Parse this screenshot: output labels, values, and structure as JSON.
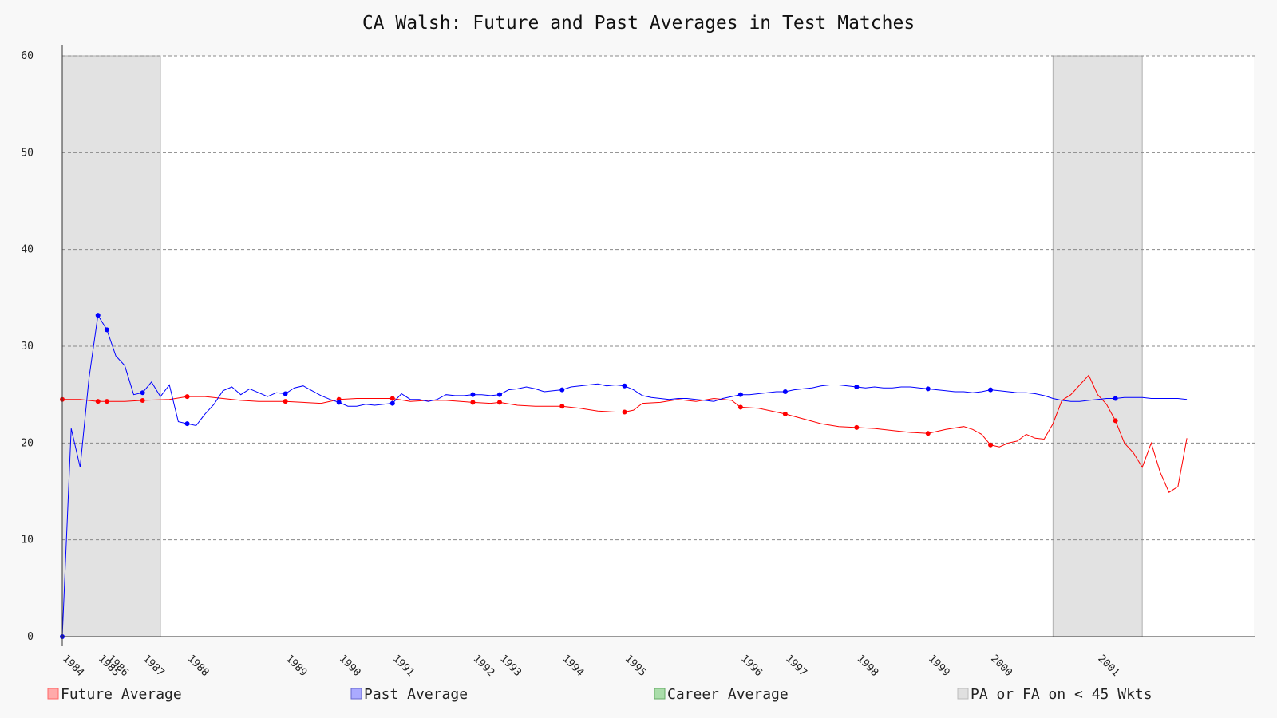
{
  "chart_data": {
    "type": "line",
    "title": "CA Walsh: Future and Past Averages in Test Matches",
    "xlabel": "",
    "ylabel": "",
    "ylim": [
      0,
      60
    ],
    "yticks": [
      0,
      10,
      20,
      30,
      40,
      50,
      60
    ],
    "grid": "horizontal dashed",
    "legend_position": "bottom",
    "x_count": 132,
    "year_labels": [
      {
        "label": "1984",
        "x": 0
      },
      {
        "label": "1985",
        "x": 4
      },
      {
        "label": "1986",
        "x": 5
      },
      {
        "label": "1987",
        "x": 9
      },
      {
        "label": "1988",
        "x": 14
      },
      {
        "label": "1989",
        "x": 25
      },
      {
        "label": "1990",
        "x": 31
      },
      {
        "label": "1991",
        "x": 37
      },
      {
        "label": "1992",
        "x": 46
      },
      {
        "label": "1993",
        "x": 49
      },
      {
        "label": "1994",
        "x": 56
      },
      {
        "label": "1995",
        "x": 63
      },
      {
        "label": "1996",
        "x": 76
      },
      {
        "label": "1997",
        "x": 81
      },
      {
        "label": "1998",
        "x": 89
      },
      {
        "label": "1999",
        "x": 97
      },
      {
        "label": "2000",
        "x": 104
      },
      {
        "label": "2001",
        "x": 116
      }
    ],
    "shaded_regions": [
      {
        "start": 0,
        "end": 11,
        "label": "PA or FA on < 45 Wkts"
      },
      {
        "start": 111,
        "end": 121,
        "label": "PA or FA on < 45 Wkts"
      }
    ],
    "series": [
      {
        "name": "Future Average",
        "color": "#ff0000",
        "points": [
          [
            0,
            24.5
          ],
          [
            2,
            24.5
          ],
          [
            4,
            24.3
          ],
          [
            5,
            24.3
          ],
          [
            7,
            24.3
          ],
          [
            9,
            24.4
          ],
          [
            12,
            24.5
          ],
          [
            14,
            24.8
          ],
          [
            16,
            24.8
          ],
          [
            18,
            24.6
          ],
          [
            20,
            24.4
          ],
          [
            22,
            24.3
          ],
          [
            25,
            24.3
          ],
          [
            27,
            24.2
          ],
          [
            29,
            24.1
          ],
          [
            31,
            24.5
          ],
          [
            33,
            24.6
          ],
          [
            35,
            24.6
          ],
          [
            37,
            24.6
          ],
          [
            39,
            24.3
          ],
          [
            41,
            24.4
          ],
          [
            43,
            24.4
          ],
          [
            46,
            24.2
          ],
          [
            48,
            24.1
          ],
          [
            49,
            24.2
          ],
          [
            51,
            23.9
          ],
          [
            53,
            23.8
          ],
          [
            56,
            23.8
          ],
          [
            58,
            23.6
          ],
          [
            60,
            23.3
          ],
          [
            62,
            23.2
          ],
          [
            63,
            23.2
          ],
          [
            64,
            23.4
          ],
          [
            65,
            24.1
          ],
          [
            67,
            24.2
          ],
          [
            69,
            24.5
          ],
          [
            71,
            24.3
          ],
          [
            73,
            24.6
          ],
          [
            75,
            24.4
          ],
          [
            76,
            23.7
          ],
          [
            78,
            23.6
          ],
          [
            80,
            23.2
          ],
          [
            81,
            23.0
          ],
          [
            83,
            22.5
          ],
          [
            85,
            22.0
          ],
          [
            87,
            21.7
          ],
          [
            89,
            21.6
          ],
          [
            91,
            21.5
          ],
          [
            93,
            21.3
          ],
          [
            95,
            21.1
          ],
          [
            97,
            21.0
          ],
          [
            99,
            21.4
          ],
          [
            101,
            21.7
          ],
          [
            102,
            21.4
          ],
          [
            103,
            20.9
          ],
          [
            104,
            19.8
          ],
          [
            105,
            19.6
          ],
          [
            106,
            20.0
          ],
          [
            107,
            20.2
          ],
          [
            108,
            20.9
          ],
          [
            109,
            20.5
          ],
          [
            110,
            20.4
          ],
          [
            111,
            22.0
          ],
          [
            112,
            24.4
          ],
          [
            113,
            25.0
          ],
          [
            114,
            26.0
          ],
          [
            115,
            27.0
          ],
          [
            116,
            25.0
          ],
          [
            117,
            24.0
          ],
          [
            118,
            22.3
          ],
          [
            119,
            20.0
          ],
          [
            120,
            19.0
          ],
          [
            121,
            17.5
          ],
          [
            122,
            20.0
          ],
          [
            123,
            17.0
          ],
          [
            124,
            14.9
          ],
          [
            125,
            15.5
          ],
          [
            126,
            20.5
          ]
        ],
        "markers": [
          0,
          4,
          5,
          9,
          14,
          25,
          31,
          37,
          46,
          49,
          56,
          63,
          76,
          81,
          89,
          97,
          104,
          118
        ]
      },
      {
        "name": "Past Average",
        "color": "#0000ff",
        "points": [
          [
            0,
            0
          ],
          [
            1,
            21.5
          ],
          [
            2,
            17.5
          ],
          [
            3,
            26.7
          ],
          [
            4,
            33.2
          ],
          [
            5,
            31.7
          ],
          [
            6,
            29.0
          ],
          [
            7,
            28.0
          ],
          [
            8,
            25.0
          ],
          [
            9,
            25.2
          ],
          [
            10,
            26.3
          ],
          [
            11,
            24.8
          ],
          [
            12,
            26.0
          ],
          [
            13,
            22.2
          ],
          [
            14,
            22.0
          ],
          [
            15,
            21.8
          ],
          [
            16,
            23.0
          ],
          [
            17,
            24.0
          ],
          [
            18,
            25.4
          ],
          [
            19,
            25.8
          ],
          [
            20,
            25.0
          ],
          [
            21,
            25.6
          ],
          [
            22,
            25.2
          ],
          [
            23,
            24.8
          ],
          [
            24,
            25.2
          ],
          [
            25,
            25.1
          ],
          [
            26,
            25.7
          ],
          [
            27,
            25.9
          ],
          [
            28,
            25.4
          ],
          [
            29,
            24.9
          ],
          [
            30,
            24.5
          ],
          [
            31,
            24.2
          ],
          [
            32,
            23.8
          ],
          [
            33,
            23.8
          ],
          [
            34,
            24.0
          ],
          [
            35,
            23.9
          ],
          [
            36,
            24.0
          ],
          [
            37,
            24.1
          ],
          [
            38,
            25.1
          ],
          [
            39,
            24.5
          ],
          [
            40,
            24.5
          ],
          [
            41,
            24.3
          ],
          [
            42,
            24.5
          ],
          [
            43,
            25.0
          ],
          [
            44,
            24.9
          ],
          [
            45,
            24.9
          ],
          [
            46,
            25.0
          ],
          [
            47,
            25.0
          ],
          [
            48,
            24.9
          ],
          [
            49,
            25.0
          ],
          [
            50,
            25.5
          ],
          [
            51,
            25.6
          ],
          [
            52,
            25.8
          ],
          [
            53,
            25.6
          ],
          [
            54,
            25.3
          ],
          [
            55,
            25.4
          ],
          [
            56,
            25.5
          ],
          [
            57,
            25.8
          ],
          [
            58,
            25.9
          ],
          [
            59,
            26.0
          ],
          [
            60,
            26.1
          ],
          [
            61,
            25.9
          ],
          [
            62,
            26.0
          ],
          [
            63,
            25.9
          ],
          [
            64,
            25.5
          ],
          [
            65,
            24.9
          ],
          [
            66,
            24.7
          ],
          [
            67,
            24.6
          ],
          [
            68,
            24.5
          ],
          [
            69,
            24.6
          ],
          [
            70,
            24.6
          ],
          [
            71,
            24.5
          ],
          [
            72,
            24.4
          ],
          [
            73,
            24.3
          ],
          [
            74,
            24.6
          ],
          [
            75,
            24.8
          ],
          [
            76,
            25.0
          ],
          [
            77,
            25.0
          ],
          [
            78,
            25.1
          ],
          [
            79,
            25.2
          ],
          [
            80,
            25.3
          ],
          [
            81,
            25.3
          ],
          [
            82,
            25.5
          ],
          [
            83,
            25.6
          ],
          [
            84,
            25.7
          ],
          [
            85,
            25.9
          ],
          [
            86,
            26.0
          ],
          [
            87,
            26.0
          ],
          [
            88,
            25.9
          ],
          [
            89,
            25.8
          ],
          [
            90,
            25.7
          ],
          [
            91,
            25.8
          ],
          [
            92,
            25.7
          ],
          [
            93,
            25.7
          ],
          [
            94,
            25.8
          ],
          [
            95,
            25.8
          ],
          [
            96,
            25.7
          ],
          [
            97,
            25.6
          ],
          [
            98,
            25.5
          ],
          [
            99,
            25.4
          ],
          [
            100,
            25.3
          ],
          [
            101,
            25.3
          ],
          [
            102,
            25.2
          ],
          [
            103,
            25.3
          ],
          [
            104,
            25.5
          ],
          [
            105,
            25.4
          ],
          [
            106,
            25.3
          ],
          [
            107,
            25.2
          ],
          [
            108,
            25.2
          ],
          [
            109,
            25.1
          ],
          [
            110,
            24.9
          ],
          [
            111,
            24.6
          ],
          [
            112,
            24.4
          ],
          [
            113,
            24.3
          ],
          [
            114,
            24.3
          ],
          [
            115,
            24.4
          ],
          [
            116,
            24.5
          ],
          [
            117,
            24.6
          ],
          [
            118,
            24.6
          ],
          [
            119,
            24.7
          ],
          [
            120,
            24.7
          ],
          [
            121,
            24.7
          ],
          [
            122,
            24.6
          ],
          [
            123,
            24.6
          ],
          [
            124,
            24.6
          ],
          [
            125,
            24.6
          ],
          [
            126,
            24.5
          ]
        ],
        "markers": [
          0,
          4,
          5,
          9,
          14,
          25,
          31,
          37,
          46,
          49,
          56,
          63,
          76,
          81,
          89,
          97,
          104,
          118
        ]
      },
      {
        "name": "Career Average",
        "color": "#008000",
        "points": [
          [
            0,
            24.44
          ],
          [
            126,
            24.44
          ]
        ],
        "markers": []
      }
    ],
    "legend": [
      {
        "label": "Future Average",
        "fill": "#ffaaaa",
        "stroke": "#ff6666"
      },
      {
        "label": "Past Average",
        "fill": "#aaaaff",
        "stroke": "#6666cc"
      },
      {
        "label": "Career Average",
        "fill": "#aaddaa",
        "stroke": "#66aa66"
      },
      {
        "label": "PA or FA on < 45 Wkts",
        "fill": "#e0e0e0",
        "stroke": "#bbbbbb"
      }
    ]
  }
}
